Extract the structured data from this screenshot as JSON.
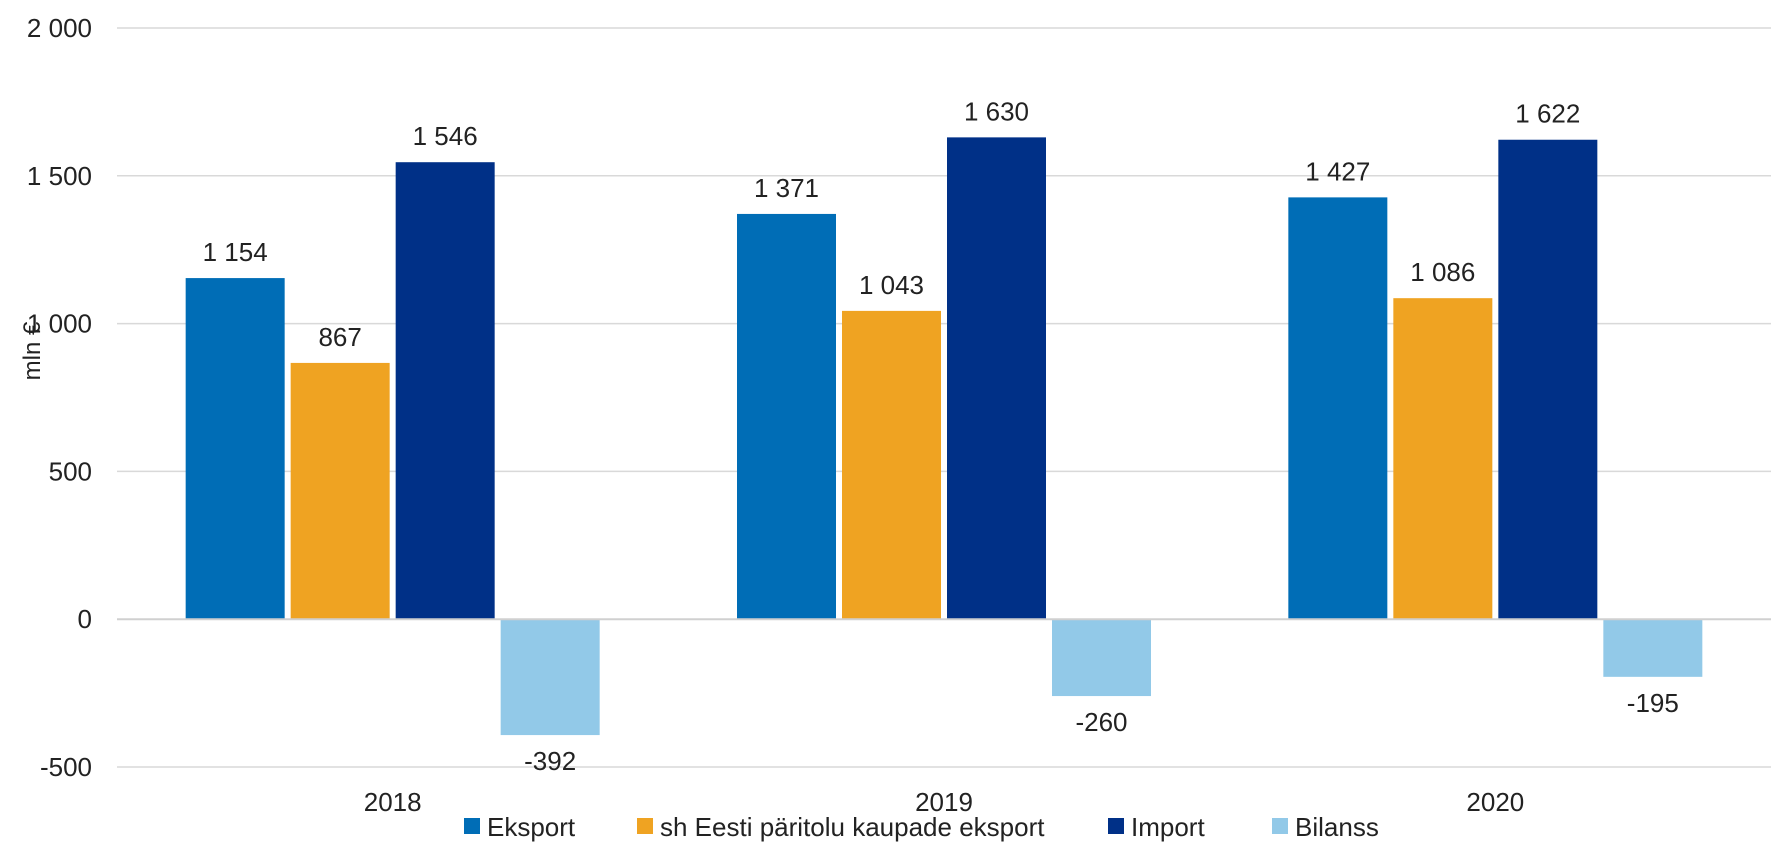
{
  "chart_data": {
    "type": "bar",
    "title": "",
    "xlabel": "",
    "ylabel": "mln €",
    "ylim": [
      -500,
      2000
    ],
    "yticks": [
      -500,
      0,
      500,
      1000,
      1500,
      2000
    ],
    "ytick_labels": [
      "-500",
      "0",
      "500",
      "1 000",
      "1 500",
      "2 000"
    ],
    "grid": true,
    "legend_position": "bottom",
    "categories": [
      "2018",
      "2019",
      "2020"
    ],
    "series": [
      {
        "name": "Eksport",
        "color": "#006DB6",
        "values": [
          1154,
          1371,
          1427
        ],
        "labels": [
          "1 154",
          "1 371",
          "1 427"
        ]
      },
      {
        "name": "sh Eesti päritolu kaupade eksport",
        "color": "#EFA322",
        "values": [
          867,
          1043,
          1086
        ],
        "labels": [
          "867",
          "1 043",
          "1 086"
        ]
      },
      {
        "name": "Import",
        "color": "#003087",
        "values": [
          1546,
          1630,
          1622
        ],
        "labels": [
          "1 546",
          "1 630",
          "1 622"
        ]
      },
      {
        "name": "Bilanss",
        "color": "#92C9E8",
        "values": [
          -392,
          -260,
          -195
        ],
        "labels": [
          "-392",
          "-260",
          "-195"
        ]
      }
    ]
  }
}
